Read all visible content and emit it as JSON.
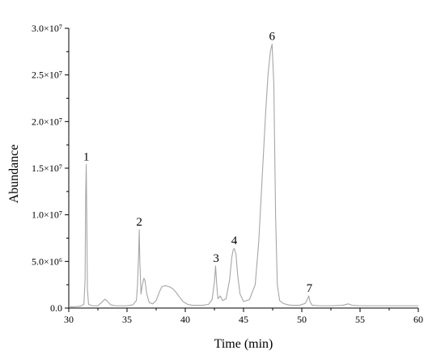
{
  "chart_data": {
    "type": "line",
    "title": "",
    "xlabel": "Time (min)",
    "ylabel": "Abundance",
    "xlim": [
      30,
      60
    ],
    "ylim": [
      0,
      30000000
    ],
    "grid": false,
    "x_ticks": [
      30,
      35,
      40,
      45,
      50,
      55,
      60
    ],
    "y_ticks": [
      {
        "value": 0,
        "label": "0.0"
      },
      {
        "value": 5000000,
        "label": "5.0×10⁶"
      },
      {
        "value": 10000000,
        "label": "1.0×10⁷"
      },
      {
        "value": 15000000,
        "label": "1.5×10⁷"
      },
      {
        "value": 20000000,
        "label": "2.0×10⁷"
      },
      {
        "value": 25000000,
        "label": "2.5×10⁷"
      },
      {
        "value": 30000000,
        "label": "3.0×10⁷"
      }
    ],
    "series": [
      {
        "color": "#a6a6a6",
        "x": [
          30.0,
          30.5,
          31.0,
          31.3,
          31.4,
          31.45,
          31.5,
          31.55,
          31.6,
          31.7,
          32.0,
          32.5,
          32.9,
          33.1,
          33.3,
          33.6,
          34.0,
          34.5,
          35.0,
          35.5,
          35.8,
          35.9,
          36.0,
          36.05,
          36.1,
          36.2,
          36.3,
          36.45,
          36.55,
          36.7,
          36.9,
          37.2,
          37.5,
          37.8,
          38.0,
          38.3,
          38.6,
          38.9,
          39.2,
          39.5,
          39.8,
          40.2,
          40.6,
          41.0,
          41.5,
          42.0,
          42.3,
          42.5,
          42.6,
          42.7,
          42.8,
          43.0,
          43.2,
          43.5,
          43.8,
          44.0,
          44.1,
          44.2,
          44.35,
          44.5,
          44.7,
          45.0,
          45.5,
          46.0,
          46.3,
          46.6,
          46.9,
          47.1,
          47.3,
          47.45,
          47.6,
          47.75,
          47.9,
          48.1,
          48.4,
          48.8,
          49.2,
          49.8,
          50.3,
          50.5,
          50.6,
          50.7,
          50.9,
          51.5,
          52.5,
          53.5,
          54.0,
          54.3,
          55.0,
          56.0,
          57.0,
          58.0,
          59.0,
          60.0
        ],
        "y": [
          150000,
          140000,
          200000,
          400000,
          3000000,
          12000000,
          15400000,
          9000000,
          2000000,
          400000,
          250000,
          250000,
          700000,
          950000,
          750000,
          350000,
          250000,
          250000,
          250000,
          350000,
          800000,
          2500000,
          6000000,
          8400000,
          5000000,
          1500000,
          2400000,
          3200000,
          2900000,
          1500000,
          600000,
          450000,
          800000,
          1800000,
          2300000,
          2400000,
          2300000,
          2100000,
          1700000,
          1200000,
          700000,
          400000,
          300000,
          300000,
          300000,
          400000,
          900000,
          2800000,
          4500000,
          2500000,
          1000000,
          1300000,
          800000,
          1000000,
          3000000,
          5500000,
          6200000,
          6400000,
          5800000,
          3500000,
          1500000,
          700000,
          900000,
          2500000,
          7000000,
          14000000,
          21000000,
          25000000,
          27500000,
          28300000,
          24000000,
          10000000,
          2500000,
          800000,
          500000,
          350000,
          300000,
          300000,
          500000,
          1000000,
          1300000,
          700000,
          300000,
          250000,
          250000,
          300000,
          450000,
          300000,
          250000,
          250000,
          250000,
          250000,
          250000,
          250000
        ]
      }
    ],
    "annotations": [
      {
        "text": "1",
        "x": 31.5,
        "y": 15400000
      },
      {
        "text": "2",
        "x": 36.05,
        "y": 8400000
      },
      {
        "text": "3",
        "x": 42.65,
        "y": 4500000
      },
      {
        "text": "4",
        "x": 44.2,
        "y": 6400000
      },
      {
        "text": "6",
        "x": 47.45,
        "y": 28300000
      },
      {
        "text": "7",
        "x": 50.65,
        "y": 1300000
      }
    ]
  }
}
